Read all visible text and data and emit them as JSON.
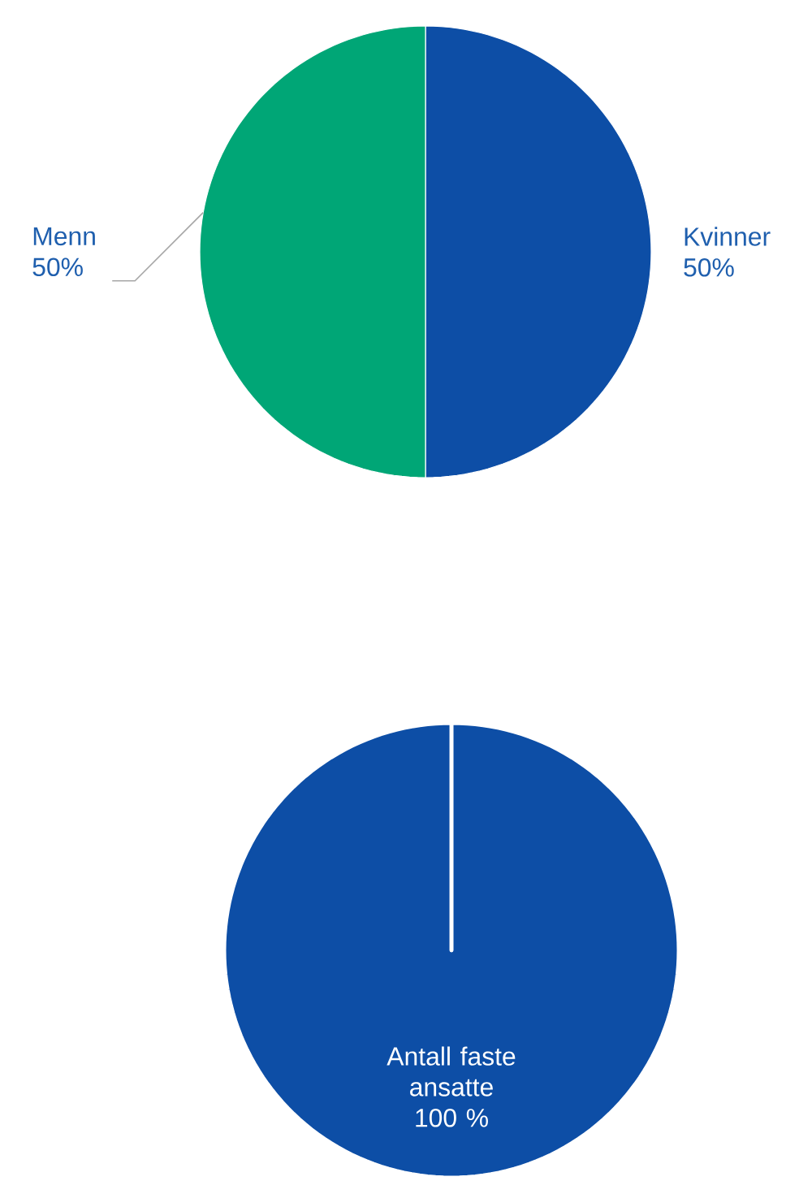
{
  "chart_data": [
    {
      "type": "pie",
      "categories": [
        "Kvinner",
        "Menn"
      ],
      "values": [
        50,
        50
      ],
      "colors": [
        "#0d4ea6",
        "#00a676"
      ],
      "value_labels": [
        "50%",
        "50%"
      ]
    },
    {
      "type": "pie",
      "categories": [
        "Antall faste ansatte"
      ],
      "values": [
        100
      ],
      "colors": [
        "#0d4ea6"
      ],
      "value_labels": [
        "100 %"
      ]
    }
  ]
}
